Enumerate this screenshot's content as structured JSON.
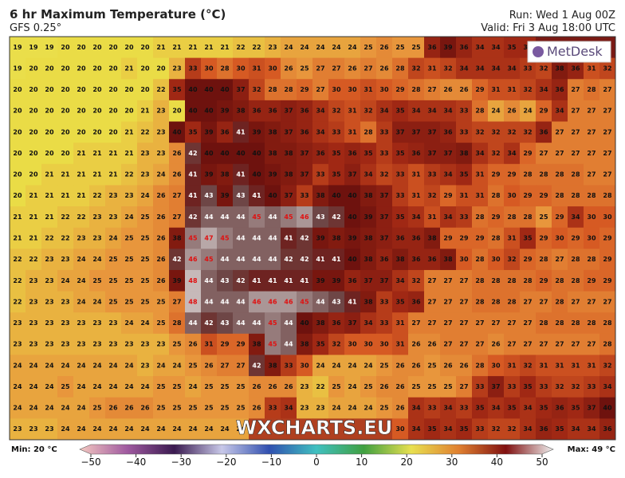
{
  "header": {
    "title": "6 hr Maximum Temperature (°C)",
    "model": "GFS 0.25°",
    "run": "Run: Wed 1 Aug 00Z",
    "valid": "Valid: Fri 3 Aug 18:00 UTC"
  },
  "logo": "MetDesk",
  "watermark": "WXCHARTS.EU",
  "map": {
    "rows": [
      [
        19,
        19,
        19,
        20,
        20,
        20,
        20,
        20,
        20,
        21,
        21,
        21,
        21,
        21,
        22,
        22,
        23,
        24,
        24,
        24,
        24,
        24,
        25,
        26,
        25,
        25,
        36,
        39,
        36,
        34,
        34,
        35,
        35,
        null,
        null,
        null,
        null,
        null
      ],
      [
        19,
        20,
        20,
        20,
        20,
        20,
        20,
        21,
        20,
        20,
        23,
        33,
        30,
        28,
        30,
        31,
        30,
        26,
        25,
        27,
        27,
        26,
        27,
        26,
        28,
        32,
        31,
        32,
        34,
        34,
        34,
        34,
        33,
        32,
        38,
        36,
        31,
        32
      ],
      [
        20,
        20,
        20,
        20,
        20,
        20,
        20,
        20,
        20,
        22,
        35,
        40,
        40,
        40,
        37,
        32,
        28,
        28,
        29,
        27,
        30,
        30,
        31,
        30,
        29,
        28,
        27,
        26,
        26,
        29,
        31,
        31,
        32,
        34,
        36,
        27,
        28,
        27
      ],
      [
        20,
        20,
        20,
        20,
        20,
        20,
        20,
        20,
        21,
        23,
        20,
        40,
        40,
        39,
        38,
        36,
        36,
        37,
        36,
        34,
        32,
        31,
        32,
        34,
        35,
        34,
        34,
        34,
        33,
        28,
        24,
        26,
        24,
        29,
        34,
        27,
        27,
        27
      ],
      [
        20,
        20,
        20,
        20,
        20,
        20,
        20,
        21,
        22,
        23,
        40,
        35,
        39,
        36,
        41,
        39,
        38,
        37,
        36,
        34,
        33,
        31,
        28,
        33,
        37,
        37,
        37,
        36,
        33,
        32,
        32,
        32,
        32,
        36,
        27,
        27,
        27,
        27
      ],
      [
        20,
        20,
        20,
        20,
        21,
        21,
        21,
        21,
        23,
        23,
        26,
        42,
        40,
        40,
        40,
        40,
        38,
        38,
        37,
        36,
        35,
        36,
        35,
        33,
        35,
        36,
        37,
        37,
        38,
        34,
        32,
        34,
        29,
        27,
        27,
        27,
        27,
        27
      ],
      [
        20,
        20,
        21,
        21,
        21,
        21,
        21,
        22,
        23,
        24,
        26,
        41,
        39,
        38,
        41,
        40,
        39,
        38,
        37,
        33,
        35,
        37,
        34,
        32,
        33,
        31,
        33,
        34,
        35,
        31,
        29,
        29,
        28,
        28,
        28,
        28,
        27,
        27
      ],
      [
        20,
        21,
        21,
        21,
        21,
        22,
        23,
        23,
        24,
        26,
        27,
        41,
        43,
        39,
        43,
        41,
        40,
        37,
        33,
        38,
        40,
        40,
        38,
        37,
        33,
        31,
        32,
        29,
        31,
        31,
        28,
        30,
        29,
        29,
        28,
        28,
        28,
        28
      ],
      [
        21,
        21,
        21,
        22,
        22,
        23,
        23,
        24,
        25,
        26,
        27,
        42,
        44,
        44,
        44,
        45,
        44,
        45,
        46,
        43,
        42,
        40,
        39,
        37,
        35,
        34,
        31,
        34,
        33,
        28,
        29,
        28,
        28,
        25,
        29,
        34,
        30,
        30
      ],
      [
        21,
        21,
        22,
        22,
        23,
        23,
        24,
        25,
        25,
        26,
        38,
        45,
        47,
        45,
        44,
        44,
        44,
        41,
        42,
        39,
        38,
        39,
        38,
        37,
        36,
        36,
        38,
        29,
        29,
        29,
        28,
        31,
        35,
        29,
        30,
        29,
        30,
        29
      ],
      [
        22,
        22,
        23,
        23,
        24,
        24,
        25,
        25,
        25,
        26,
        42,
        46,
        45,
        44,
        44,
        44,
        44,
        42,
        42,
        41,
        41,
        40,
        38,
        36,
        38,
        36,
        36,
        38,
        30,
        28,
        30,
        32,
        29,
        28,
        27,
        28,
        28,
        29
      ],
      [
        22,
        23,
        23,
        24,
        24,
        25,
        25,
        25,
        25,
        26,
        39,
        48,
        44,
        43,
        42,
        41,
        41,
        41,
        41,
        39,
        39,
        36,
        37,
        37,
        34,
        32,
        27,
        27,
        27,
        28,
        28,
        28,
        28,
        29,
        28,
        28,
        29,
        29
      ],
      [
        22,
        23,
        23,
        23,
        24,
        24,
        25,
        25,
        25,
        25,
        27,
        48,
        44,
        44,
        44,
        46,
        46,
        46,
        45,
        44,
        43,
        41,
        38,
        33,
        35,
        36,
        27,
        27,
        27,
        28,
        28,
        28,
        27,
        27,
        28,
        27,
        27,
        27
      ],
      [
        23,
        23,
        23,
        23,
        23,
        23,
        23,
        24,
        24,
        25,
        28,
        44,
        42,
        43,
        44,
        44,
        45,
        44,
        40,
        38,
        36,
        37,
        34,
        33,
        31,
        27,
        27,
        27,
        27,
        27,
        27,
        27,
        27,
        28,
        28,
        28,
        28,
        28
      ],
      [
        23,
        23,
        23,
        23,
        23,
        23,
        23,
        23,
        23,
        23,
        25,
        26,
        31,
        29,
        29,
        38,
        45,
        44,
        38,
        35,
        32,
        30,
        30,
        30,
        31,
        26,
        26,
        27,
        27,
        27,
        26,
        27,
        27,
        27,
        27,
        27,
        27,
        28
      ],
      [
        24,
        24,
        24,
        24,
        24,
        24,
        24,
        24,
        23,
        24,
        24,
        25,
        26,
        27,
        27,
        42,
        38,
        33,
        30,
        24,
        24,
        24,
        24,
        25,
        26,
        26,
        25,
        26,
        26,
        28,
        30,
        31,
        32,
        31,
        31,
        31,
        31,
        32
      ],
      [
        24,
        24,
        24,
        25,
        24,
        24,
        24,
        24,
        24,
        25,
        25,
        24,
        25,
        25,
        25,
        26,
        26,
        26,
        23,
        22,
        25,
        24,
        25,
        26,
        26,
        25,
        25,
        25,
        27,
        33,
        37,
        33,
        35,
        33,
        32,
        32,
        33,
        34
      ],
      [
        24,
        24,
        24,
        24,
        24,
        25,
        26,
        26,
        26,
        25,
        25,
        25,
        25,
        25,
        25,
        26,
        33,
        34,
        23,
        23,
        24,
        24,
        24,
        25,
        26,
        34,
        33,
        34,
        33,
        35,
        34,
        35,
        34,
        35,
        36,
        35,
        37,
        40
      ],
      [
        23,
        23,
        23,
        24,
        24,
        24,
        24,
        24,
        24,
        24,
        24,
        24,
        24,
        24,
        24,
        null,
        null,
        null,
        null,
        null,
        null,
        null,
        null,
        null,
        30,
        34,
        35,
        34,
        35,
        33,
        32,
        32,
        34,
        36,
        35,
        34,
        34,
        36
      ]
    ]
  },
  "colorbar": {
    "min_label": "Min: 20 °C",
    "max_label": "Max: 49 °C",
    "lim": [
      -50,
      50
    ],
    "ticks": [
      {
        "value": -50,
        "label": "−50"
      },
      {
        "value": -40,
        "label": "−40"
      },
      {
        "value": -30,
        "label": "−30"
      },
      {
        "value": -20,
        "label": "−20"
      },
      {
        "value": -10,
        "label": "−10"
      },
      0,
      10,
      20,
      30,
      40,
      50
    ]
  }
}
